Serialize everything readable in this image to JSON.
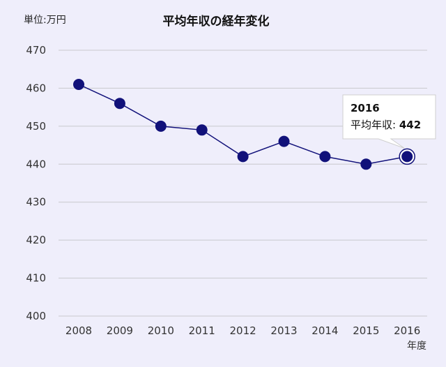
{
  "chart_data": {
    "type": "line",
    "title": "平均年収の経年変化",
    "unit_label": "単位:万円",
    "xlabel": "年度",
    "ylabel": "",
    "categories": [
      "2008",
      "2009",
      "2010",
      "2011",
      "2012",
      "2013",
      "2014",
      "2015",
      "2016"
    ],
    "series": [
      {
        "name": "平均年収",
        "values": [
          461,
          456,
          450,
          449,
          442,
          446,
          442,
          440,
          442
        ]
      }
    ],
    "ylim": [
      400,
      470
    ],
    "yticks": [
      400,
      410,
      420,
      430,
      440,
      450,
      460,
      470
    ],
    "grid": true,
    "line_color": "#11117a",
    "tooltip": {
      "title": "2016",
      "label": "平均年収",
      "value": "442"
    }
  }
}
